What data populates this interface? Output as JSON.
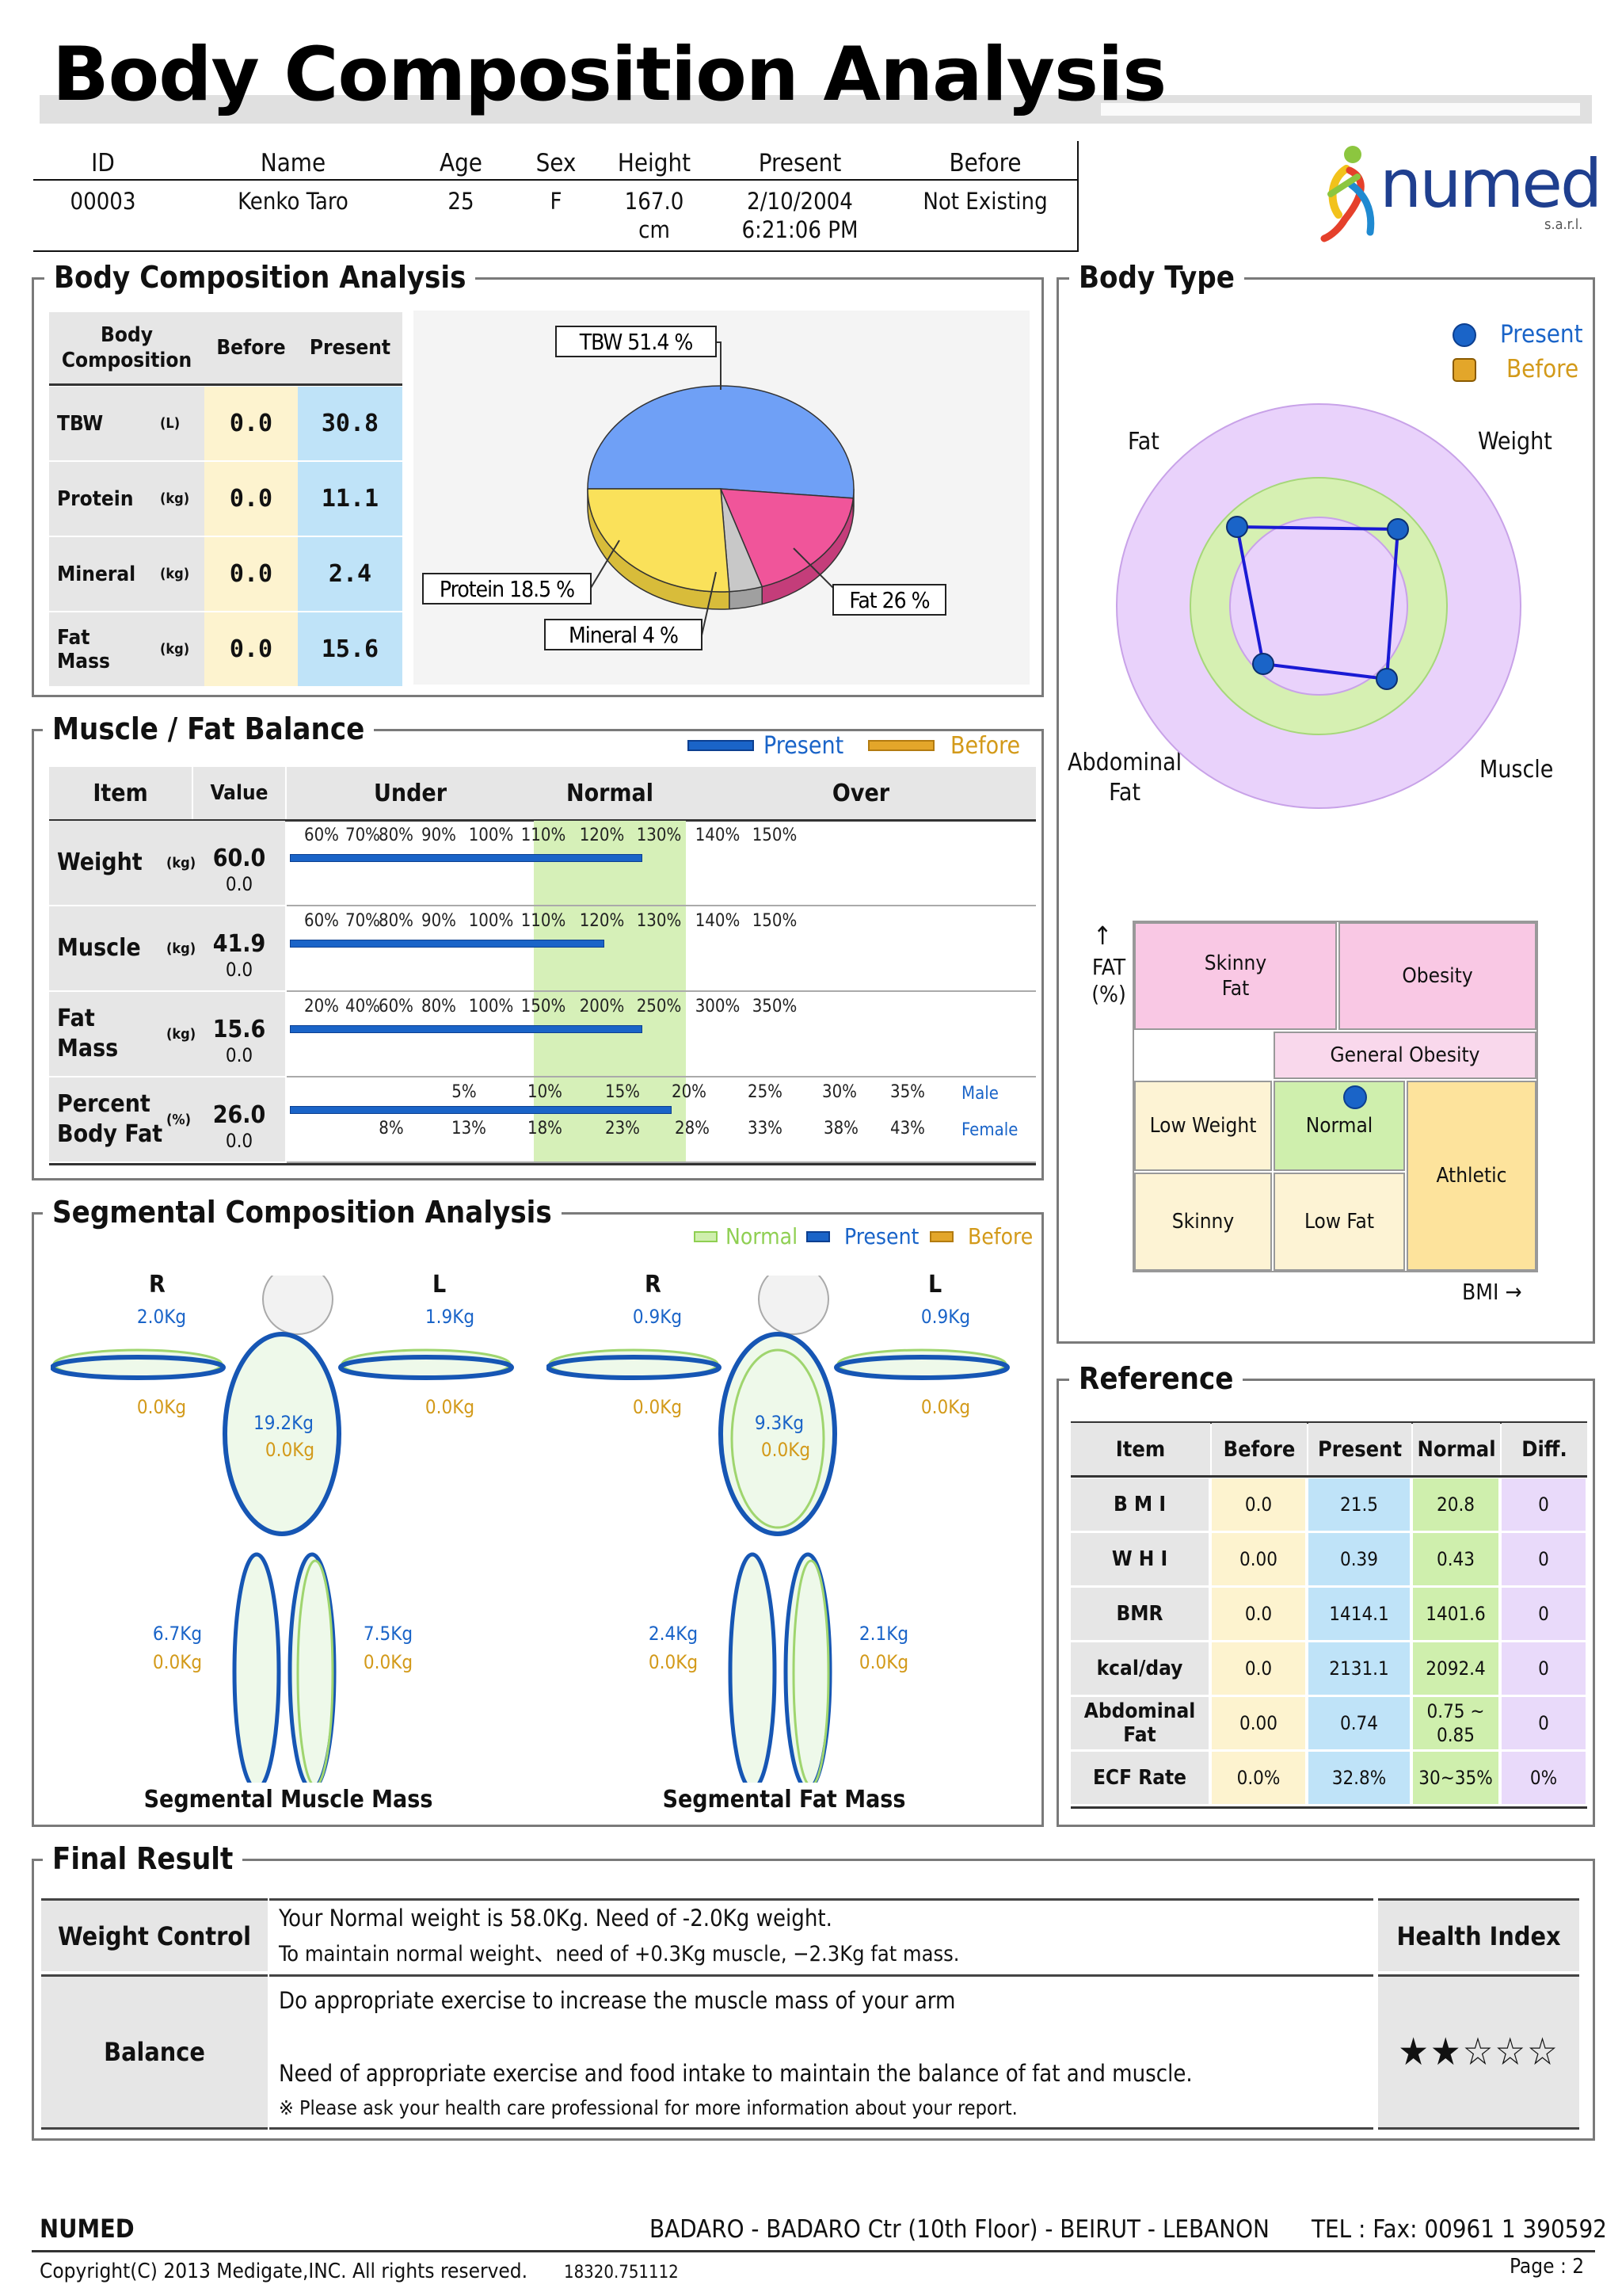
{
  "title": "Body Composition Analysis",
  "patient": {
    "headers": [
      "ID",
      "Name",
      "Age",
      "Sex",
      "Height",
      "Present",
      "Before"
    ],
    "values": [
      "00003",
      "Kenko Taro",
      "25",
      "F",
      "167.0\ncm",
      "2/10/2004\n6:21:06 PM",
      "Not Existing"
    ]
  },
  "logo": {
    "text": "numed",
    "sub": "s.a.r.l."
  },
  "bca": {
    "title": "Body Composition Analysis",
    "headers": [
      "Body\nComposition",
      "Before",
      "Present"
    ],
    "rows": [
      {
        "name": "TBW",
        "unit": "(L)",
        "before": "0.0",
        "present": "30.8"
      },
      {
        "name": "Protein",
        "unit": "(kg)",
        "before": "0.0",
        "present": "11.1"
      },
      {
        "name": "Mineral",
        "unit": "(kg)",
        "before": "0.0",
        "present": "2.4"
      },
      {
        "name": "Fat\nMass",
        "unit": "(kg)",
        "before": "0.0",
        "present": "15.6"
      }
    ],
    "pie_labels": {
      "tbw": "TBW 51.4 %",
      "protein": "Protein 18.5 %",
      "mineral": "Mineral 4 %",
      "fat": "Fat 26 %"
    }
  },
  "chart_data": {
    "type": "pie",
    "categories": [
      "TBW",
      "Protein",
      "Mineral",
      "Fat"
    ],
    "values": [
      51.4,
      18.5,
      4,
      26
    ],
    "colors": [
      "#6fa0f6",
      "#f0559a",
      "#c8c8c8",
      "#fae15a"
    ]
  },
  "body_type": {
    "title": "Body Type",
    "legend": {
      "present": "Present",
      "before": "Before"
    },
    "labels": {
      "fat": "Fat",
      "weight": "Weight",
      "abdominal": "Abdominal\nFat",
      "muscle": "Muscle"
    },
    "matrix": {
      "axis_y": "FAT\n(%)",
      "axis_x": "BMI →",
      "cells": {
        "skinny_fat": "Skinny\nFat",
        "obesity": "Obesity",
        "general_obesity": "General Obesity",
        "low_weight": "Low Weight",
        "normal": "Normal",
        "athletic": "Athletic",
        "skinny": "Skinny",
        "low_fat": "Low Fat"
      }
    }
  },
  "mfb": {
    "title": "Muscle / Fat Balance",
    "legend": {
      "present": "Present",
      "before": "Before"
    },
    "headers": {
      "item": "Item",
      "value": "Value",
      "under": "Under",
      "normal": "Normal",
      "over": "Over"
    },
    "rows": [
      {
        "name": "Weight",
        "unit": "(kg)",
        "present": "60.0",
        "before": "0.0",
        "ticks": [
          "60%",
          "70%",
          "80%",
          "90%",
          "100%",
          "110%",
          "120%",
          "130%",
          "140%",
          "150%"
        ],
        "fill": 0.47
      },
      {
        "name": "Muscle",
        "unit": "(kg)",
        "present": "41.9",
        "before": "0.0",
        "ticks": [
          "60%",
          "70%",
          "80%",
          "90%",
          "100%",
          "110%",
          "120%",
          "130%",
          "140%",
          "150%"
        ],
        "fill": 0.42
      },
      {
        "name": "Fat\nMass",
        "unit": "(kg)",
        "present": "15.6",
        "before": "0.0",
        "ticks": [
          "20%",
          "40%",
          "60%",
          "80%",
          "100%",
          "150%",
          "200%",
          "250%",
          "300%",
          "350%"
        ],
        "fill": 0.47
      },
      {
        "name": "Percent\nBody Fat",
        "unit": "(%)",
        "present": "26.0",
        "before": "0.0",
        "ticks_male": [
          "5%",
          "10%",
          "15%",
          "20%",
          "25%",
          "30%",
          "35%"
        ],
        "ticks_female": [
          "8%",
          "13%",
          "18%",
          "23%",
          "28%",
          "33%",
          "38%",
          "43%"
        ],
        "male": "Male",
        "female": "Female",
        "fill": 0.51
      }
    ]
  },
  "seg": {
    "title": "Segmental Composition Analysis",
    "legend": {
      "normal": "Normal",
      "present": "Present",
      "before": "Before"
    },
    "muscle": {
      "caption": "Segmental Muscle Mass",
      "r": "R",
      "l": "L",
      "right_arm": "2.0Kg",
      "right_arm_b": "0.0Kg",
      "left_arm": "1.9Kg",
      "left_arm_b": "0.0Kg",
      "trunk": "19.2Kg",
      "trunk_b": "0.0Kg",
      "right_leg": "6.7Kg",
      "right_leg_b": "0.0Kg",
      "left_leg": "7.5Kg",
      "left_leg_b": "0.0Kg"
    },
    "fat": {
      "caption": "Segmental Fat Mass",
      "r": "R",
      "l": "L",
      "right_arm": "0.9Kg",
      "right_arm_b": "0.0Kg",
      "left_arm": "0.9Kg",
      "left_arm_b": "0.0Kg",
      "trunk": "9.3Kg",
      "trunk_b": "0.0Kg",
      "right_leg": "2.4Kg",
      "right_leg_b": "0.0Kg",
      "left_leg": "2.1Kg",
      "left_leg_b": "0.0Kg"
    }
  },
  "reference": {
    "title": "Reference",
    "headers": [
      "Item",
      "Before",
      "Present",
      "Normal",
      "Diff."
    ],
    "rows": [
      [
        "B M I",
        "0.0",
        "21.5",
        "20.8",
        "0"
      ],
      [
        "W H I",
        "0.00",
        "0.39",
        "0.43",
        "0"
      ],
      [
        "BMR",
        "0.0",
        "1414.1",
        "1401.6",
        "0"
      ],
      [
        "kcal/day",
        "0.0",
        "2131.1",
        "2092.4",
        "0"
      ],
      [
        "Abdominal\nFat",
        "0.00",
        "0.74",
        "0.75 ~\n0.85",
        "0"
      ],
      [
        "ECF Rate",
        "0.0%",
        "32.8%",
        "30~35%",
        "0%"
      ]
    ]
  },
  "final": {
    "title": "Final Result",
    "weight_control_label": "Weight Control",
    "weight_line1": "Your Normal weight is  58.0Kg. Need of -2.0Kg weight.",
    "weight_line2": "To maintain normal weight、need of  +0.3Kg muscle, −2.3Kg fat mass.",
    "health_index_label": "Health Index",
    "balance_label": "Balance",
    "balance_line1": "Do appropriate exercise to increase the muscle mass of your arm",
    "balance_line2": "Need of appropriate exercise and food intake to maintain the balance of fat and muscle.",
    "note": "※  Please ask your health care professional for more information about your report.",
    "stars": "★★☆☆☆"
  },
  "footer": {
    "company": "NUMED",
    "address": "BADARO - BADARO Ctr (10th Floor) - BEIRUT - LEBANON",
    "tel": "TEL : Fax: 00961 1 390592",
    "copyright": "Copyright(C) 2013 Medigate,INC. All rights reserved.",
    "code": "18320.751112",
    "page": "Page : 2"
  }
}
